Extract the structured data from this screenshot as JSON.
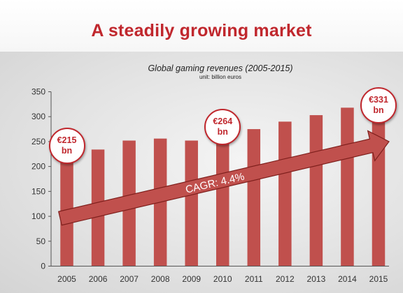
{
  "header": {
    "title": "A steadily growing market"
  },
  "colors": {
    "accent": "#c0272d",
    "bar": "#c0504d",
    "arrow": "#c0504d"
  },
  "chart_data": {
    "type": "bar",
    "title": "Global gaming revenues (2005-2015)",
    "subtitle": "unit: billion euros",
    "categories": [
      "2005",
      "2006",
      "2007",
      "2008",
      "2009",
      "2010",
      "2011",
      "2012",
      "2013",
      "2014",
      "2015"
    ],
    "values": [
      215,
      234,
      252,
      256,
      252,
      264,
      275,
      290,
      303,
      318,
      331
    ],
    "ylim": [
      0,
      350
    ],
    "yticks": [
      0,
      50,
      100,
      150,
      200,
      250,
      300,
      350
    ],
    "grid": false,
    "callouts": [
      {
        "category": "2005",
        "value_label": "€215",
        "unit_label": "bn"
      },
      {
        "category": "2010",
        "value_label": "€264",
        "unit_label": "bn"
      },
      {
        "category": "2015",
        "value_label": "€331",
        "unit_label": "bn"
      }
    ],
    "trend_arrow": {
      "label": "CAGR: 4.4%"
    }
  }
}
